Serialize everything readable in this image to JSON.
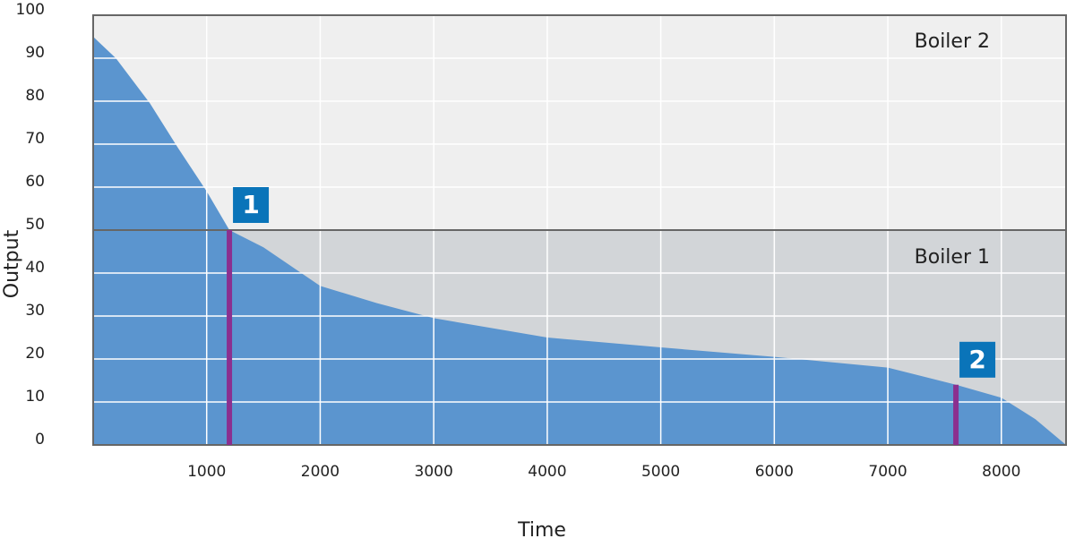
{
  "chart_data": {
    "type": "area",
    "xlabel": "Time",
    "ylabel": "Output",
    "x": [
      0,
      200,
      500,
      750,
      1000,
      1200,
      1500,
      2000,
      2500,
      3000,
      4000,
      5000,
      6000,
      7000,
      7600,
      8000,
      8300,
      8570
    ],
    "values": [
      95,
      90,
      79.5,
      69,
      59,
      50,
      46,
      37,
      33,
      29.5,
      25,
      22.7,
      20.5,
      18,
      14,
      11,
      6,
      0
    ],
    "color": "#5b95cf",
    "xlim": [
      0,
      8570
    ],
    "ylim": [
      0,
      100
    ],
    "xticks": [
      1000,
      2000,
      3000,
      4000,
      5000,
      6000,
      7000,
      8000
    ],
    "yticks": [
      0,
      10,
      20,
      30,
      40,
      50,
      60,
      70,
      80,
      90,
      100
    ],
    "grid": true,
    "threshold": 50,
    "regions": [
      {
        "label": "Boiler 2",
        "color": "#efefef"
      },
      {
        "label": "Boiler 1",
        "color": "#d2d5d8"
      }
    ],
    "markers": [
      {
        "label": "1",
        "x": 1200,
        "y": 50
      },
      {
        "label": "2",
        "x": 7600,
        "y": 14
      }
    ],
    "marker_color": "#8b2f8f",
    "badge_color": "#0a74b9"
  }
}
